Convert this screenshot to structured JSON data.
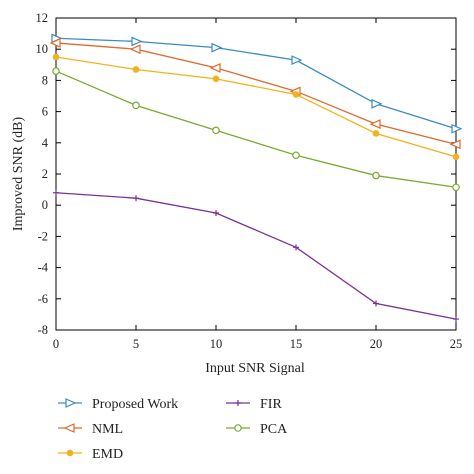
{
  "chart_data": {
    "type": "line",
    "title": "",
    "xlabel": "Input SNR Signal",
    "ylabel": "Improved SNR (dB)",
    "x": [
      0,
      5,
      10,
      15,
      20,
      25
    ],
    "xticks": [
      0,
      5,
      10,
      15,
      20,
      25
    ],
    "yticks": [
      -8,
      -6,
      -4,
      -2,
      0,
      2,
      4,
      6,
      8,
      10,
      12
    ],
    "xlim": [
      0,
      25
    ],
    "ylim": [
      -8,
      12
    ],
    "grid": false,
    "legend_position": "bottom",
    "series": [
      {
        "name": "Proposed Work",
        "color": "#3b8bc2",
        "marker": "triangle-right",
        "values": [
          10.7,
          10.5,
          10.1,
          9.3,
          6.5,
          4.9
        ]
      },
      {
        "name": "NML",
        "color": "#e06a2b",
        "marker": "triangle-left",
        "values": [
          10.4,
          10.0,
          8.8,
          7.3,
          5.2,
          3.9
        ]
      },
      {
        "name": "EMD",
        "color": "#f2b21b",
        "marker": "circle-filled",
        "values": [
          9.5,
          8.7,
          8.1,
          7.1,
          4.6,
          3.1
        ]
      },
      {
        "name": "FIR",
        "color": "#7b3294",
        "marker": "plus",
        "values": [
          0.8,
          0.45,
          -0.5,
          -2.7,
          -6.3,
          -7.3
        ]
      },
      {
        "name": "PCA",
        "color": "#77ac30",
        "marker": "circle-open",
        "values": [
          8.6,
          6.4,
          4.8,
          3.2,
          1.9,
          1.15
        ]
      }
    ]
  }
}
